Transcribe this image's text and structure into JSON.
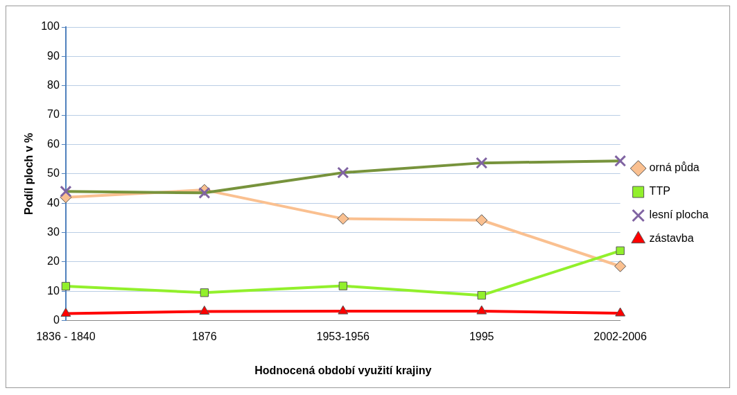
{
  "chart_data": {
    "type": "line",
    "xlabel": "Hodnocená období využití krajiny",
    "ylabel": "Podíl ploch v %",
    "categories": [
      "1836 - 1840",
      "1876",
      "1953-1956",
      "1995",
      "2002-2006"
    ],
    "series": [
      {
        "name": "orná půda",
        "color": "#fac090",
        "marker": "diamond",
        "values": [
          42,
          44.5,
          34.7,
          34.2,
          18.5
        ]
      },
      {
        "name": "TTP",
        "color": "#92f02c",
        "marker": "square",
        "values": [
          11.7,
          9.5,
          11.8,
          8.6,
          23.8
        ]
      },
      {
        "name": "lesní plocha",
        "color": "#77933c",
        "marker": "cross",
        "values": [
          44,
          43.5,
          50.4,
          53.7,
          54.4
        ]
      },
      {
        "name": "zástavba",
        "color": "#ff0000",
        "marker": "triangle",
        "values": [
          2.4,
          3.1,
          3.2,
          3.2,
          2.5
        ]
      }
    ],
    "ylim": [
      0,
      100
    ],
    "yticks": [
      0,
      10,
      20,
      30,
      40,
      50,
      60,
      70,
      80,
      90,
      100
    ],
    "grid": "y",
    "legend": "right"
  }
}
